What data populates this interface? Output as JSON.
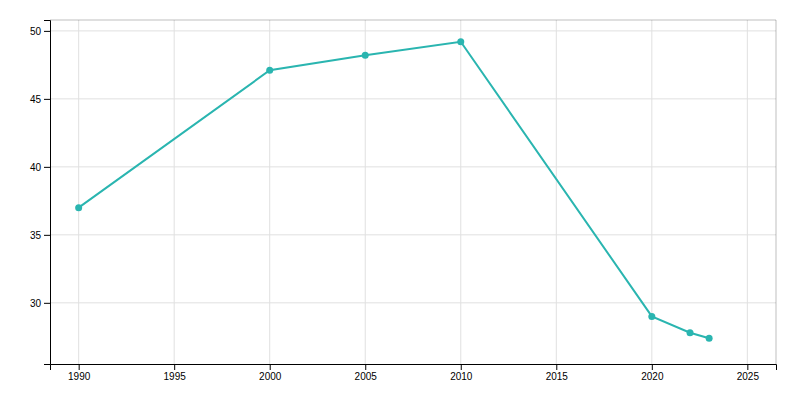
{
  "chart_data": {
    "type": "line",
    "x": [
      1990,
      2000,
      2005,
      2010,
      2020,
      2022,
      2023
    ],
    "values": [
      37.0,
      47.1,
      48.2,
      49.2,
      29.0,
      27.8,
      27.4
    ],
    "color": "#2ab5b0",
    "marker": "circle",
    "xlim": [
      1988.5,
      2026.5
    ],
    "ylim": [
      25.5,
      50.8
    ],
    "xticks": [
      1990,
      1995,
      2000,
      2005,
      2010,
      2015,
      2020,
      2025
    ],
    "yticks": [
      30,
      35,
      40,
      45,
      50
    ],
    "grid": true
  }
}
